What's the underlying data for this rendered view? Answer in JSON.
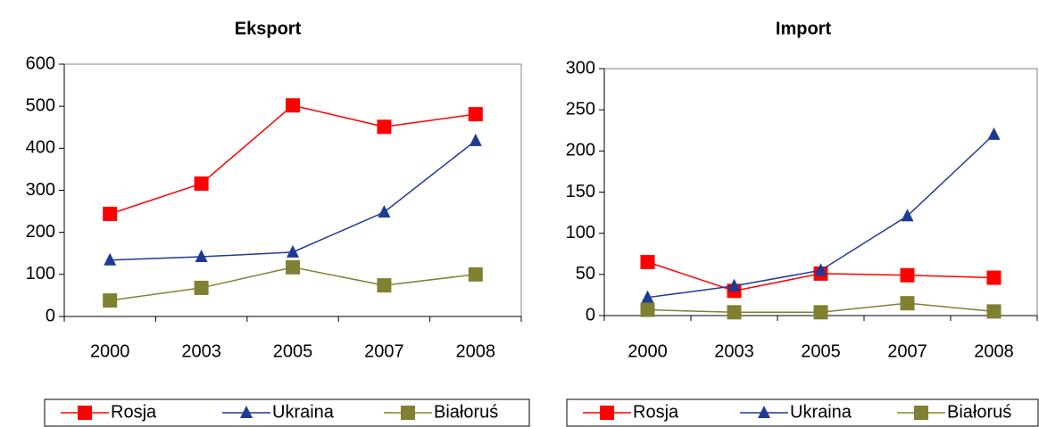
{
  "chart_data": [
    {
      "type": "line",
      "title": "Eksport",
      "categories": [
        "2000",
        "2003",
        "2005",
        "2007",
        "2008"
      ],
      "series": [
        {
          "name": "Rosja",
          "color": "#ff0000",
          "marker": "square",
          "values": [
            244,
            316,
            502,
            451,
            481
          ]
        },
        {
          "name": "Ukraina",
          "color": "#1f3a93",
          "marker": "triangle",
          "values": [
            134,
            142,
            153,
            248,
            418
          ]
        },
        {
          "name": "Białoruś",
          "color": "#808033",
          "marker": "square",
          "values": [
            38,
            68,
            117,
            74,
            100
          ]
        }
      ],
      "ylim": [
        0,
        600
      ],
      "yticks": [
        0,
        100,
        200,
        300,
        400,
        500,
        600
      ],
      "legend": "bottom"
    },
    {
      "type": "line",
      "title": "Import",
      "categories": [
        "2000",
        "2003",
        "2005",
        "2007",
        "2008"
      ],
      "series": [
        {
          "name": "Rosja",
          "color": "#ff0000",
          "marker": "square",
          "values": [
            65,
            30,
            51,
            49,
            46
          ]
        },
        {
          "name": "Ukraina",
          "color": "#1f3a93",
          "marker": "triangle",
          "values": [
            22,
            36,
            55,
            121,
            220
          ]
        },
        {
          "name": "Białoruś",
          "color": "#808033",
          "marker": "square",
          "values": [
            7,
            4,
            4,
            15,
            5
          ]
        }
      ],
      "ylim": [
        0,
        300
      ],
      "yticks": [
        0,
        50,
        100,
        150,
        200,
        250,
        300
      ],
      "legend": "bottom"
    }
  ]
}
